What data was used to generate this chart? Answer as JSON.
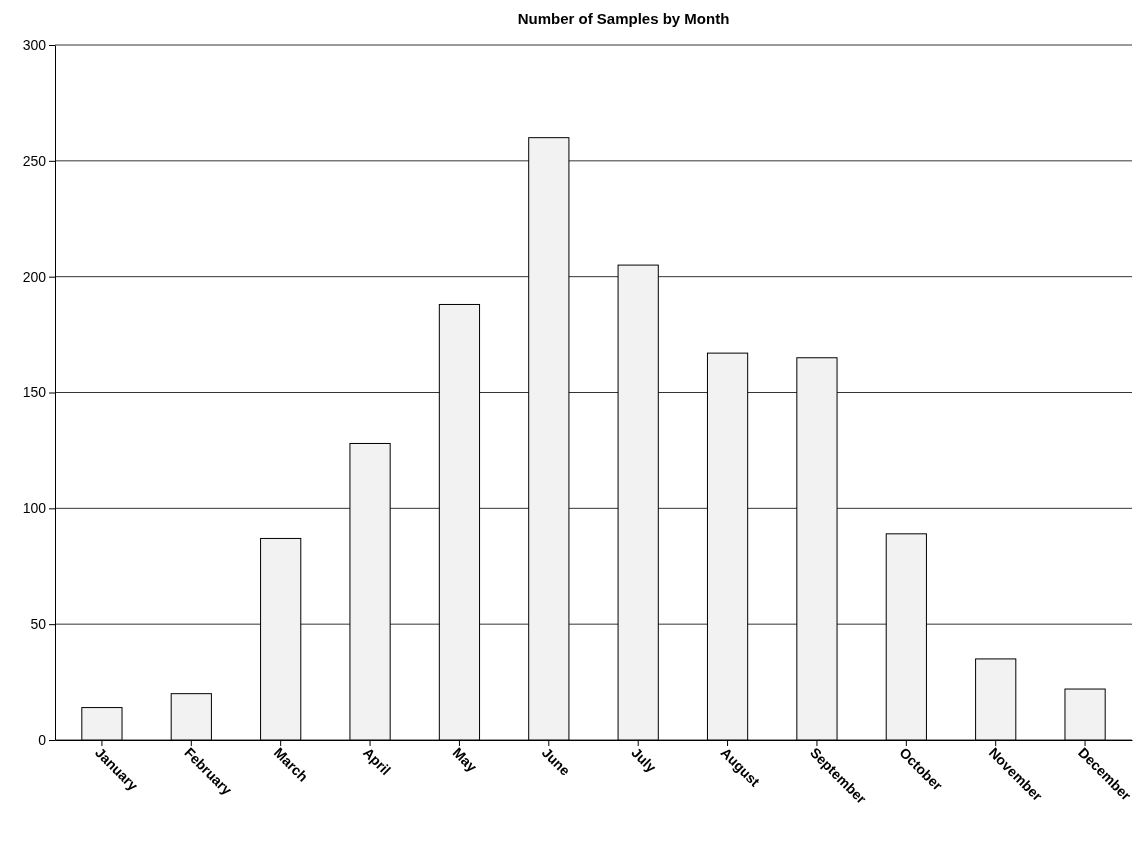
{
  "chart_data": {
    "type": "bar",
    "title": "Number of Samples by Month",
    "categories": [
      "January",
      "February",
      "March",
      "April",
      "May",
      "June",
      "July",
      "August",
      "September",
      "October",
      "November",
      "December"
    ],
    "values": [
      14,
      20,
      87,
      128,
      188,
      260,
      205,
      167,
      165,
      89,
      35,
      22
    ],
    "color": "#f2f2f2",
    "ylim": [
      0,
      300
    ],
    "yticks": [
      0,
      50,
      100,
      150,
      200,
      250,
      300
    ],
    "grid": "y"
  }
}
